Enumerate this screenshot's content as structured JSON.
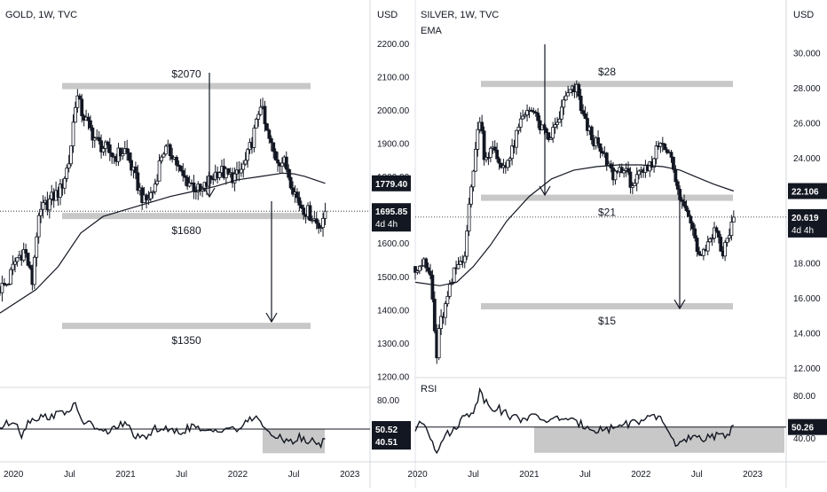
{
  "chart_data": [
    {
      "type": "candlestick",
      "title": "GOLD, 1W, TVC",
      "currency_label": "USD",
      "y_ticks": [
        "2200.00",
        "2100.00",
        "2000.00",
        "1900.00",
        "1800.00",
        "1700.00",
        "1600.00",
        "1500.00",
        "1400.00",
        "1300.00",
        "1200.00"
      ],
      "y_tick_values": [
        2200,
        2100,
        2000,
        1900,
        1800,
        1700,
        1600,
        1500,
        1400,
        1300,
        1200
      ],
      "ylim": [
        1180,
        2250
      ],
      "x_ticks": [
        "2020",
        "Jul",
        "2021",
        "Jul",
        "2022",
        "Jul",
        "2023"
      ],
      "x_tick_values": [
        2020.0,
        2020.5,
        2021.0,
        2021.5,
        2022.0,
        2022.5,
        2023.0
      ],
      "xlim": [
        2019.88,
        2023.18
      ],
      "close_series": {
        "x": [
          2019.88,
          2019.95,
          2020.02,
          2020.1,
          2020.17,
          2020.2,
          2020.25,
          2020.33,
          2020.42,
          2020.5,
          2020.56,
          2020.6,
          2020.67,
          2020.75,
          2020.83,
          2020.9,
          2021.0,
          2021.08,
          2021.17,
          2021.25,
          2021.33,
          2021.42,
          2021.5,
          2021.58,
          2021.67,
          2021.75,
          2021.83,
          2021.92,
          2022.0,
          2022.08,
          2022.17,
          2022.2,
          2022.25,
          2022.33,
          2022.42,
          2022.5,
          2022.55,
          2022.6,
          2022.67,
          2022.72,
          2022.75,
          2022.78
        ],
        "y": [
          1465,
          1480,
          1550,
          1580,
          1480,
          1620,
          1700,
          1730,
          1760,
          1850,
          2050,
          2000,
          1950,
          1900,
          1880,
          1860,
          1880,
          1800,
          1720,
          1760,
          1880,
          1870,
          1800,
          1780,
          1750,
          1790,
          1820,
          1800,
          1800,
          1850,
          1960,
          2030,
          1940,
          1860,
          1840,
          1760,
          1720,
          1700,
          1680,
          1650,
          1670,
          1695.85
        ]
      },
      "ema_series": {
        "x": [
          2019.88,
          2020.2,
          2020.4,
          2020.6,
          2020.8,
          2021.0,
          2021.2,
          2021.4,
          2021.6,
          2021.8,
          2022.0,
          2022.2,
          2022.4,
          2022.5,
          2022.6,
          2022.78
        ],
        "y": [
          1390,
          1460,
          1530,
          1630,
          1680,
          1700,
          1720,
          1740,
          1755,
          1770,
          1790,
          1800,
          1810,
          1808,
          1800,
          1779.4
        ]
      },
      "levels": [
        {
          "label": "$2070",
          "value": 2070
        },
        {
          "label": "$1680",
          "value": 1680
        },
        {
          "label": "$1350",
          "value": 1350
        }
      ],
      "current_price": "1695.85",
      "current_value": 1695.85,
      "current_timer": "4d 4h",
      "ema_value": "1779.40",
      "ema_numeric": 1779.4,
      "rsi": {
        "y_ticks": [
          "80.00"
        ],
        "ylim": [
          20,
          90
        ],
        "line_value": 50.52,
        "line_label": "50.52",
        "current_label": "40.51",
        "current_value": 40.51,
        "x": [
          2019.88,
          2019.95,
          2020.02,
          2020.08,
          2020.12,
          2020.2,
          2020.3,
          2020.4,
          2020.5,
          2020.55,
          2020.62,
          2020.7,
          2020.8,
          2020.9,
          2021.0,
          2021.1,
          2021.17,
          2021.25,
          2021.3,
          2021.4,
          2021.5,
          2021.6,
          2021.7,
          2021.8,
          2021.9,
          2022.0,
          2022.1,
          2022.15,
          2022.2,
          2022.28,
          2022.35,
          2022.45,
          2022.5,
          2022.55,
          2022.62,
          2022.68,
          2022.74,
          2022.78
        ],
        "y": [
          52,
          56,
          60,
          42,
          58,
          62,
          63,
          66,
          70,
          74,
          58,
          55,
          46,
          52,
          56,
          42,
          40,
          50,
          52,
          48,
          48,
          54,
          46,
          50,
          52,
          50,
          58,
          64,
          60,
          44,
          42,
          40,
          38,
          42,
          36,
          40,
          34,
          40.51
        ]
      }
    },
    {
      "type": "candlestick",
      "title": "SILVER, 1W, TVC",
      "indicator_label": "EMA",
      "currency_label": "USD",
      "y_ticks": [
        "30.000",
        "28.000",
        "26.000",
        "24.000",
        "22.000",
        "20.000",
        "18.000",
        "16.000",
        "14.000",
        "12.000"
      ],
      "y_tick_values": [
        30,
        28,
        26,
        24,
        22,
        20,
        18,
        16,
        14,
        12
      ],
      "ylim": [
        11.5,
        31.5
      ],
      "x_ticks": [
        "2020",
        "Jul",
        "2021",
        "Jul",
        "2022",
        "Jul",
        "2023"
      ],
      "x_tick_values": [
        2020.0,
        2020.5,
        2021.0,
        2021.5,
        2022.0,
        2022.5,
        2023.0
      ],
      "xlim": [
        2019.98,
        2023.3
      ],
      "close_series": {
        "x": [
          2019.98,
          2020.05,
          2020.12,
          2020.17,
          2020.2,
          2020.25,
          2020.33,
          2020.42,
          2020.5,
          2020.56,
          2020.6,
          2020.67,
          2020.75,
          2020.83,
          2020.92,
          2021.0,
          2021.08,
          2021.17,
          2021.25,
          2021.33,
          2021.42,
          2021.5,
          2021.58,
          2021.67,
          2021.75,
          2021.83,
          2021.92,
          2022.0,
          2022.08,
          2022.17,
          2022.25,
          2022.33,
          2022.4,
          2022.45,
          2022.5,
          2022.55,
          2022.62,
          2022.68,
          2022.72,
          2022.78,
          2022.83
        ],
        "y": [
          17.8,
          18.0,
          17.2,
          12.5,
          14.5,
          15.5,
          17.5,
          18.5,
          23.5,
          26.5,
          24.0,
          24.5,
          23.5,
          24.0,
          26.0,
          27.0,
          26.0,
          25.0,
          26.0,
          27.5,
          28.0,
          26.0,
          25.0,
          24.0,
          23.0,
          23.5,
          22.5,
          23.0,
          23.5,
          25.0,
          24.5,
          22.0,
          21.0,
          20.5,
          19.0,
          18.5,
          19.5,
          20.0,
          18.5,
          19.5,
          20.619
        ]
      },
      "ema_series": {
        "x": [
          2019.98,
          2020.2,
          2020.35,
          2020.5,
          2020.65,
          2020.8,
          2021.0,
          2021.2,
          2021.4,
          2021.6,
          2021.8,
          2022.0,
          2022.2,
          2022.35,
          2022.5,
          2022.65,
          2022.83
        ],
        "y": [
          16.9,
          16.7,
          16.9,
          17.8,
          19.0,
          20.4,
          21.8,
          22.8,
          23.3,
          23.5,
          23.6,
          23.6,
          23.5,
          23.3,
          22.9,
          22.5,
          22.106
        ]
      },
      "levels": [
        {
          "label": "$28",
          "value": 28.2
        },
        {
          "label": "$21",
          "value": 21.7
        },
        {
          "label": "$15",
          "value": 15.5
        }
      ],
      "current_price": "20.619",
      "current_value": 20.619,
      "current_timer": "4d 4h",
      "ema_value": "22.106",
      "ema_numeric": 22.106,
      "rsi": {
        "label": "RSI",
        "y_ticks": [
          "80.00",
          "40.00"
        ],
        "ylim": [
          20,
          95
        ],
        "line_value": 50.26,
        "line_label": "50.26",
        "x": [
          2019.98,
          2020.05,
          2020.1,
          2020.17,
          2020.22,
          2020.3,
          2020.4,
          2020.5,
          2020.56,
          2020.6,
          2020.65,
          2020.72,
          2020.8,
          2020.9,
          2021.0,
          2021.1,
          2021.2,
          2021.3,
          2021.4,
          2021.5,
          2021.6,
          2021.7,
          2021.8,
          2021.9,
          2022.0,
          2022.1,
          2022.15,
          2022.2,
          2022.28,
          2022.35,
          2022.45,
          2022.55,
          2022.62,
          2022.7,
          2022.78,
          2022.83
        ],
        "y": [
          48,
          55,
          46,
          28,
          40,
          45,
          58,
          66,
          84,
          76,
          70,
          68,
          62,
          58,
          60,
          58,
          56,
          60,
          54,
          52,
          48,
          48,
          52,
          54,
          56,
          58,
          60,
          56,
          38,
          34,
          40,
          38,
          44,
          40,
          44,
          52
        ]
      }
    }
  ]
}
